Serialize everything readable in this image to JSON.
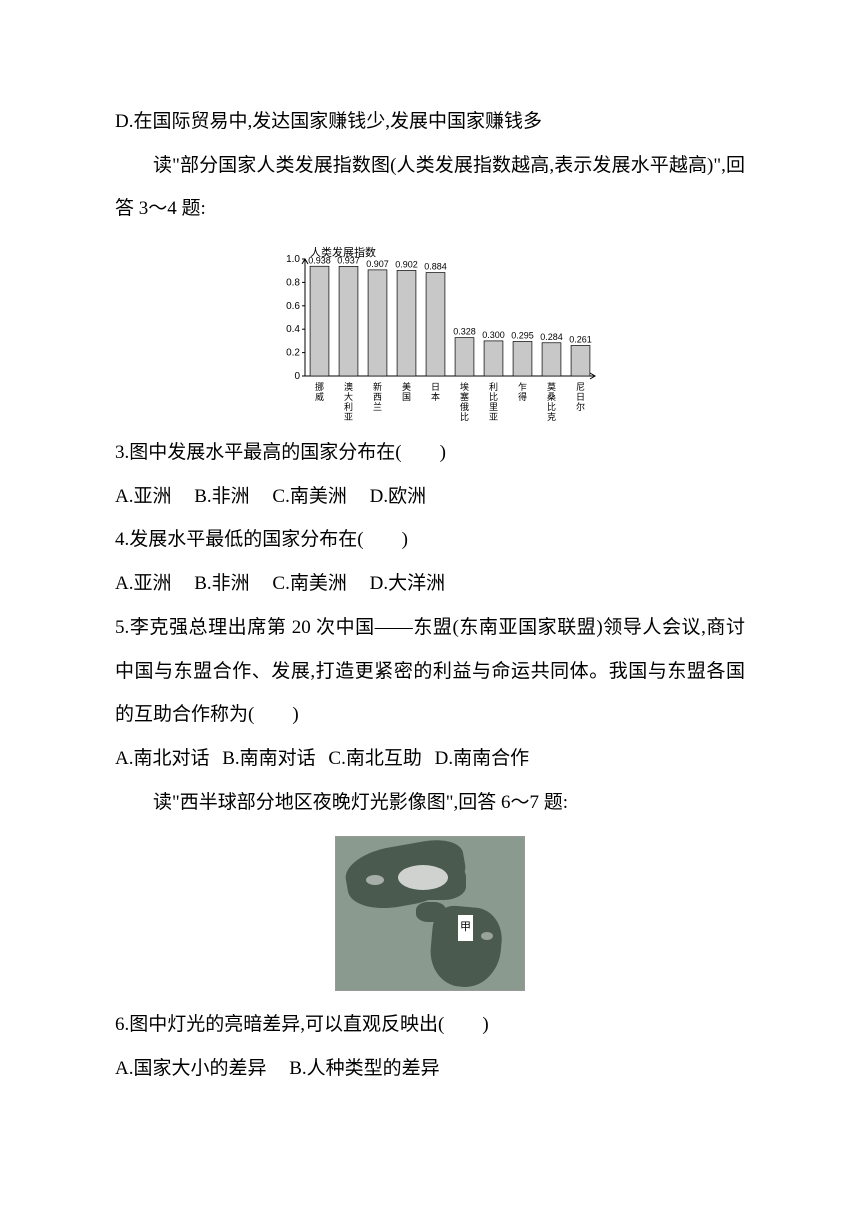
{
  "lines": {
    "d_option": "D.在国际贸易中,发达国家赚钱少,发展中国家赚钱多",
    "intro34": "读\"部分国家人类发展指数图(人类发展指数越高,表示发展水平越高)\",回答 3～4 题:",
    "q3": "3.图中发展水平最高的国家分布在(　　)",
    "q3a": "A.亚洲",
    "q3b": "B.非洲",
    "q3c": "C.南美洲",
    "q3d": "D.欧洲",
    "q4": "4.发展水平最低的国家分布在(　　)",
    "q4a": "A.亚洲",
    "q4b": "B.非洲",
    "q4c": "C.南美洲",
    "q4d": "D.大洋洲",
    "q5p1": "5.李克强总理出席第 20 次中国——东盟(东南亚国家联盟)领导人会议,商讨中国与东盟合作、发展,打造更紧密的利益与命运共同体。我国与东盟各国的互助合作称为(　　)",
    "q5a": "A.南北对话",
    "q5b": "B.南南对话",
    "q5c": "C.南北互助",
    "q5d": "D.南南合作",
    "intro67": "读\"西半球部分地区夜晚灯光影像图\",回答 6～7 题:",
    "q6": "6.图中灯光的亮暗差异,可以直观反映出(　　)",
    "q6a": "A.国家大小的差异",
    "q6b": "B.人种类型的差异"
  },
  "chart": {
    "type": "bar",
    "title": "人类发展指数",
    "title_fontsize": 11,
    "categories": [
      "挪威",
      "澳大利亚",
      "新西兰",
      "美国",
      "日本",
      "埃塞俄比亚",
      "利比里亚",
      "乍得",
      "莫桑比克",
      "尼日尔"
    ],
    "values": [
      0.938,
      0.937,
      0.907,
      0.902,
      0.884,
      0.328,
      0.3,
      0.295,
      0.284,
      0.261
    ],
    "value_labels": [
      "0.938",
      "0.937",
      "0.907",
      "0.902",
      "0.884",
      "0.328",
      "0.300",
      "0.295",
      "0.284",
      "0.261"
    ],
    "bar_color": "#c8c8c8",
    "bar_border": "#000000",
    "ylim": [
      0,
      1.0
    ],
    "ytick_step": 0.2,
    "yticks": [
      "0",
      "0.2",
      "0.4",
      "0.6",
      "0.8",
      "1.0"
    ],
    "background_color": "#ffffff",
    "label_fontsize": 10,
    "value_fontsize": 9,
    "bar_width": 0.65
  },
  "map": {
    "label": "甲"
  }
}
